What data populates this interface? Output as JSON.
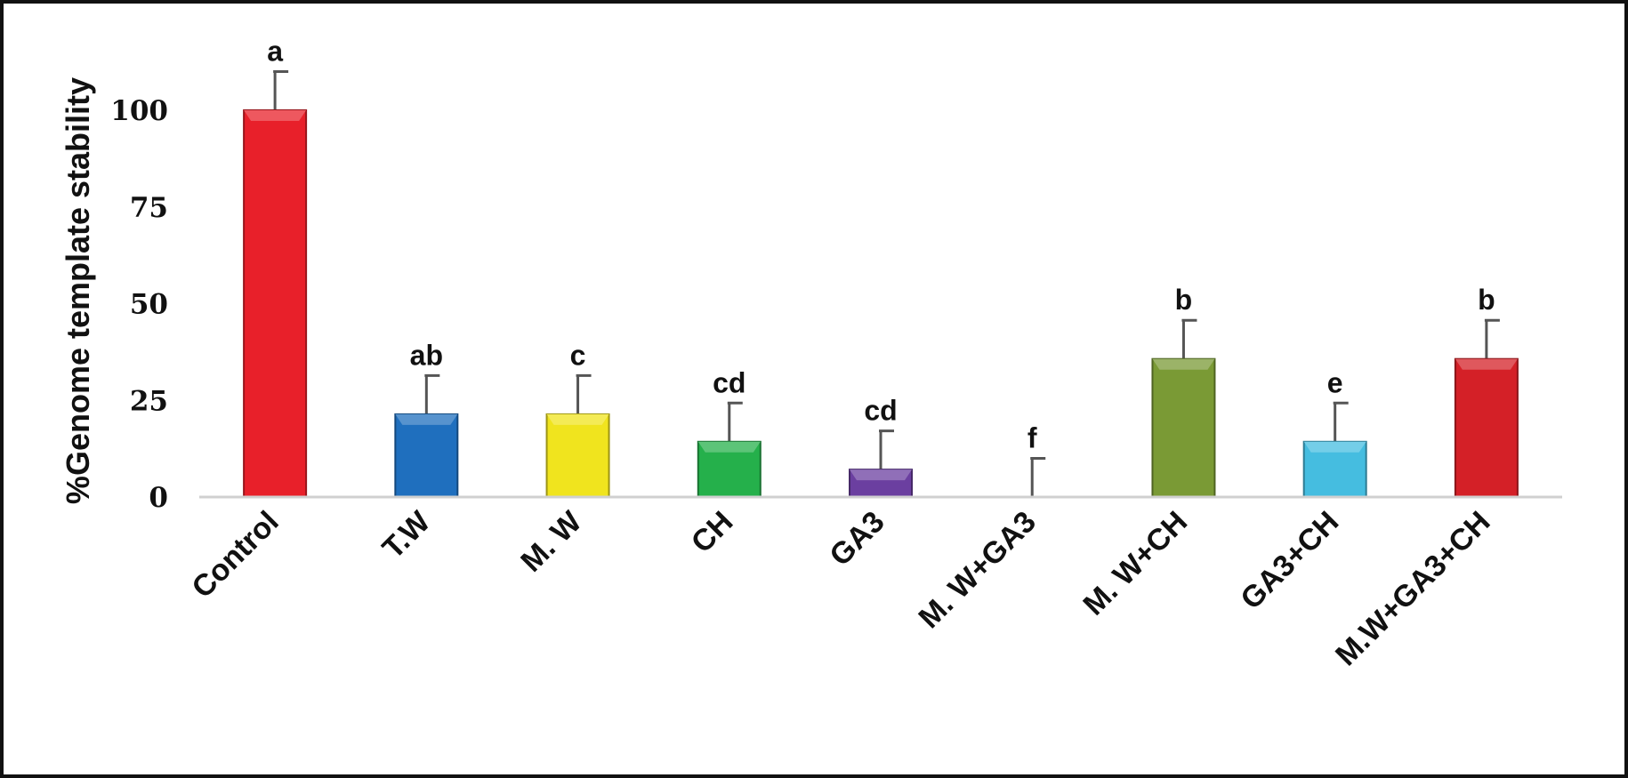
{
  "chart_data": {
    "type": "bar",
    "title": "",
    "xlabel": "",
    "ylabel": "%Genome template stability",
    "ylim": [
      0,
      110
    ],
    "yticks": [
      0,
      25,
      50,
      75,
      100
    ],
    "grid": false,
    "legend": "none",
    "categories": [
      "Control",
      "T.W",
      "M. W",
      "CH",
      "GA3",
      "M. W+GA3",
      "M. W+CH",
      "GA3+CH",
      "M.W+GA3+CH"
    ],
    "values": [
      100,
      21.4,
      21.4,
      14.3,
      7.1,
      0,
      35.7,
      14.3,
      35.7
    ],
    "error": [
      10,
      10,
      10,
      10,
      10,
      10,
      10,
      10,
      10
    ],
    "significance_letters": [
      "a",
      "ab",
      "c",
      "cd",
      "cd",
      "f",
      "b",
      "e",
      "b"
    ],
    "colors": [
      "#e8202a",
      "#1f6fbe",
      "#f0e41e",
      "#25b04b",
      "#6b3fa0",
      "#888888",
      "#7a9a35",
      "#45bde0",
      "#d42027"
    ]
  }
}
